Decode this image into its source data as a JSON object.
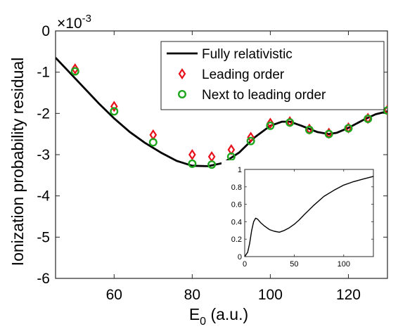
{
  "chart_data": [
    {
      "type": "line",
      "xlabel": "E",
      "xlabel_sub": "0",
      "xlabel_unit": " (a.u.)",
      "ylabel": "Ionization probability residual",
      "exponent_base": "×10",
      "exponent_power": "-3",
      "xlim": [
        45,
        130
      ],
      "ylim": [
        -6,
        0
      ],
      "xticks": [
        60,
        80,
        100,
        120
      ],
      "yticks": [
        0,
        -1,
        -2,
        -3,
        -4,
        -5,
        -6
      ],
      "legend_position": "top-right",
      "grid": false,
      "series": [
        {
          "name": "Fully relativistic",
          "style": "line",
          "color": "#000000",
          "x": [
            45,
            48,
            52,
            56,
            60,
            64,
            68,
            72,
            76,
            80,
            84,
            88,
            92,
            96,
            100,
            103,
            105,
            108,
            112,
            115,
            117,
            120,
            124,
            127,
            130
          ],
          "y": [
            -0.65,
            -0.95,
            -1.35,
            -1.75,
            -2.12,
            -2.45,
            -2.72,
            -2.95,
            -3.15,
            -3.27,
            -3.28,
            -3.2,
            -2.95,
            -2.58,
            -2.3,
            -2.2,
            -2.2,
            -2.3,
            -2.45,
            -2.5,
            -2.47,
            -2.35,
            -2.15,
            -2.02,
            -1.95
          ]
        },
        {
          "name": "Leading order",
          "style": "diamond",
          "color": "#e8101a",
          "x": [
            50,
            60,
            70,
            80,
            85,
            90,
            95,
            100,
            105,
            110,
            115,
            120,
            125,
            130
          ],
          "y": [
            -0.92,
            -1.83,
            -2.52,
            -3.0,
            -3.05,
            -2.88,
            -2.58,
            -2.24,
            -2.2,
            -2.38,
            -2.48,
            -2.35,
            -2.12,
            -1.92
          ]
        },
        {
          "name": "Next to leading order",
          "style": "circle",
          "color": "#1fa61f",
          "x": [
            50,
            60,
            70,
            80,
            85,
            90,
            95,
            100,
            105,
            110,
            115,
            120,
            125,
            130
          ],
          "y": [
            -0.98,
            -1.95,
            -2.7,
            -3.22,
            -3.24,
            -3.05,
            -2.67,
            -2.3,
            -2.22,
            -2.4,
            -2.5,
            -2.36,
            -2.13,
            -1.93
          ]
        }
      ]
    },
    {
      "type": "line",
      "role": "inset",
      "xlim": [
        0,
        130
      ],
      "ylim": [
        0,
        1
      ],
      "xticks": [
        0,
        50,
        100
      ],
      "yticks": [
        0,
        0.2,
        0.4,
        0.6,
        0.8,
        1
      ],
      "ytick_labels": [
        "0",
        "0.2",
        "0.4",
        "0.6",
        "0.8",
        "1"
      ],
      "series": [
        {
          "color": "#000000",
          "x": [
            0,
            3,
            5,
            7,
            9,
            11,
            13,
            16,
            20,
            25,
            30,
            35,
            40,
            45,
            50,
            55,
            60,
            70,
            80,
            90,
            100,
            110,
            120,
            130
          ],
          "y": [
            0,
            0.05,
            0.15,
            0.3,
            0.4,
            0.44,
            0.43,
            0.39,
            0.35,
            0.31,
            0.29,
            0.28,
            0.3,
            0.33,
            0.37,
            0.42,
            0.48,
            0.59,
            0.69,
            0.76,
            0.82,
            0.86,
            0.89,
            0.92
          ]
        }
      ]
    }
  ]
}
